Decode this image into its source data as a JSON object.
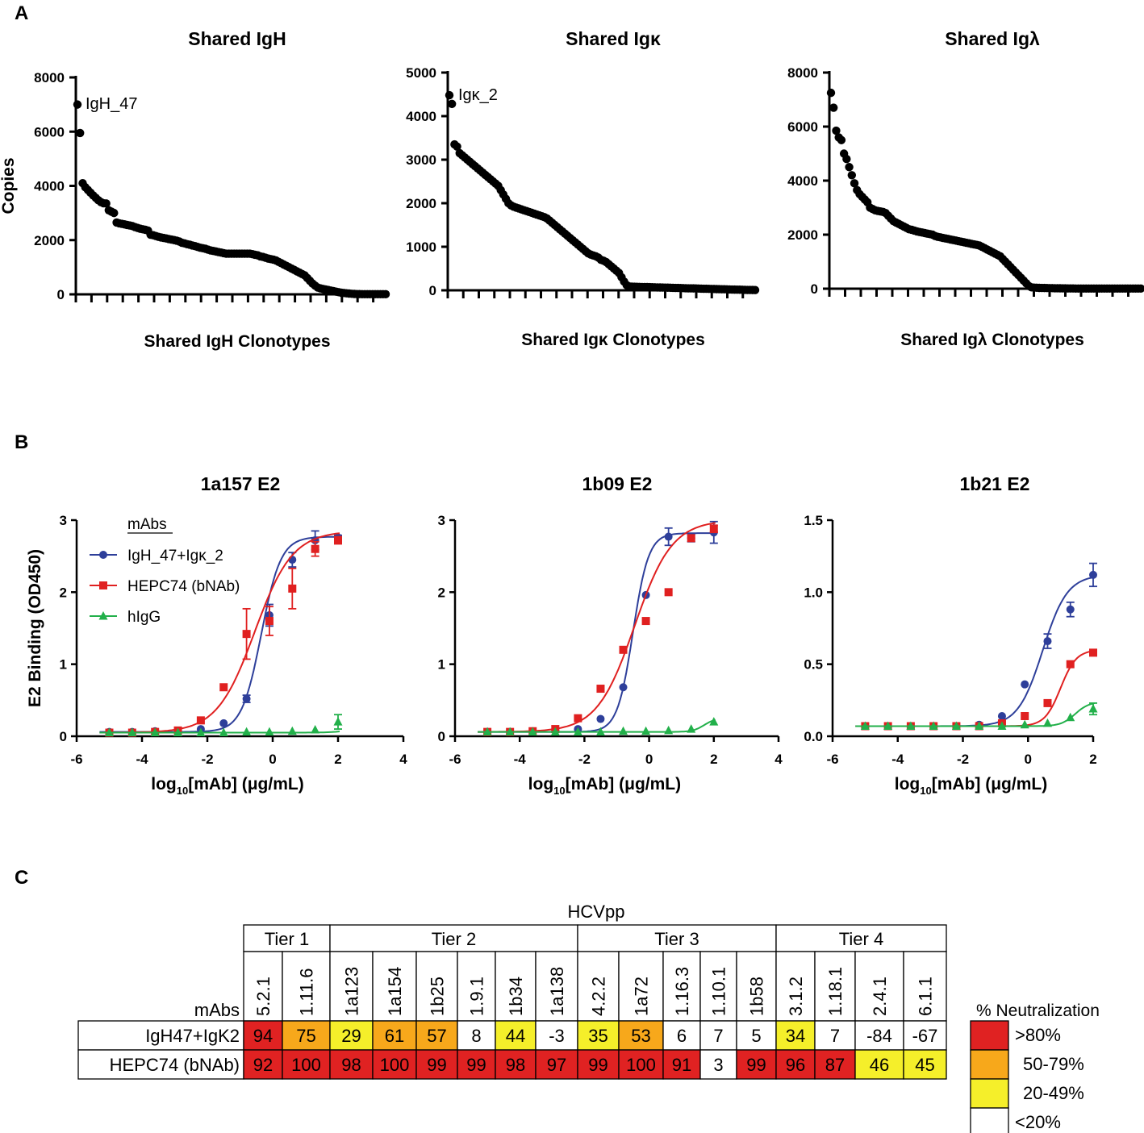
{
  "panels": {
    "a": "A",
    "b": "B",
    "c": "C"
  },
  "chart_data": [
    {
      "type": "scatter",
      "title": "Shared IgH",
      "xlabel": "Shared IgH Clonotypes",
      "ylabel": "Copies",
      "yticks": [
        "0",
        "2000",
        "4000",
        "6000",
        "8000"
      ],
      "ylim": [
        0,
        8000
      ],
      "annotation": "IgH_47",
      "x_tick_count": 20,
      "values": [
        7000,
        5950,
        4100,
        3950,
        3850,
        3750,
        3650,
        3560,
        3470,
        3400,
        3360,
        3350,
        3100,
        3050,
        3000,
        2650,
        2620,
        2600,
        2580,
        2560,
        2540,
        2520,
        2480,
        2450,
        2420,
        2400,
        2380,
        2350,
        2200,
        2180,
        2150,
        2120,
        2100,
        2080,
        2060,
        2040,
        2020,
        2000,
        1980,
        1950,
        1900,
        1880,
        1850,
        1830,
        1800,
        1780,
        1750,
        1720,
        1700,
        1680,
        1650,
        1620,
        1600,
        1580,
        1560,
        1540,
        1520,
        1500,
        1500,
        1500,
        1500,
        1500,
        1500,
        1500,
        1500,
        1500,
        1500,
        1480,
        1460,
        1440,
        1400,
        1380,
        1350,
        1320,
        1300,
        1280,
        1250,
        1200,
        1150,
        1100,
        1050,
        1000,
        950,
        900,
        850,
        800,
        750,
        700,
        600,
        500,
        400,
        320,
        250,
        220,
        200,
        180,
        160,
        140,
        120,
        100,
        80,
        60,
        50,
        40,
        30,
        20,
        15,
        10,
        8,
        5,
        5,
        5,
        5,
        5,
        5,
        5,
        5,
        5,
        5
      ]
    },
    {
      "type": "scatter",
      "title": "Shared Igκ",
      "xlabel": "Shared Igκ Clonotypes",
      "ylabel": "",
      "yticks": [
        "0",
        "1000",
        "2000",
        "3000",
        "4000",
        "5000"
      ],
      "ylim": [
        0,
        5000
      ],
      "annotation": "Igκ_2",
      "x_tick_count": 20,
      "values": [
        4480,
        4280,
        3350,
        3300,
        3150,
        3100,
        3050,
        3000,
        2950,
        2900,
        2850,
        2800,
        2750,
        2700,
        2650,
        2600,
        2550,
        2500,
        2450,
        2400,
        2300,
        2200,
        2100,
        2000,
        1950,
        1920,
        1900,
        1880,
        1860,
        1840,
        1820,
        1800,
        1780,
        1760,
        1740,
        1720,
        1700,
        1680,
        1650,
        1600,
        1550,
        1500,
        1450,
        1400,
        1350,
        1300,
        1250,
        1200,
        1150,
        1100,
        1050,
        1000,
        950,
        900,
        850,
        820,
        800,
        780,
        750,
        700,
        680,
        650,
        600,
        550,
        500,
        450,
        400,
        300,
        200,
        120,
        90,
        85,
        82,
        80,
        78,
        76,
        75,
        74,
        72,
        70,
        68,
        66,
        65,
        64,
        62,
        60,
        58,
        56,
        55,
        54,
        52,
        50,
        48,
        46,
        45,
        44,
        42,
        40,
        38,
        36,
        35,
        34,
        32,
        30,
        28,
        26,
        25,
        24,
        22,
        20,
        18,
        16,
        15,
        14,
        12,
        10,
        9,
        8,
        7,
        6
      ]
    },
    {
      "type": "scatter",
      "title": "Shared Igλ",
      "xlabel": "Shared Igλ Clonotypes",
      "ylabel": "",
      "yticks": [
        "0",
        "2000",
        "4000",
        "6000",
        "8000"
      ],
      "ylim": [
        0,
        8000
      ],
      "annotation": "",
      "x_tick_count": 20,
      "values": [
        7250,
        6700,
        5850,
        5600,
        5500,
        5000,
        4800,
        4500,
        4200,
        3900,
        3650,
        3500,
        3400,
        3300,
        3200,
        3000,
        2950,
        2900,
        2880,
        2860,
        2840,
        2800,
        2700,
        2600,
        2500,
        2450,
        2400,
        2350,
        2300,
        2250,
        2200,
        2180,
        2150,
        2120,
        2100,
        2080,
        2060,
        2040,
        2020,
        2000,
        1950,
        1920,
        1900,
        1880,
        1860,
        1840,
        1820,
        1800,
        1780,
        1760,
        1740,
        1720,
        1700,
        1680,
        1660,
        1640,
        1620,
        1600,
        1550,
        1500,
        1450,
        1400,
        1350,
        1300,
        1250,
        1200,
        1100,
        1000,
        900,
        800,
        700,
        600,
        500,
        400,
        300,
        200,
        100,
        50,
        40,
        35,
        30,
        28,
        26,
        24,
        22,
        20,
        18,
        16,
        15,
        14,
        12,
        10,
        9,
        8,
        7,
        6,
        5,
        5,
        5,
        5,
        5,
        5,
        5,
        5,
        5,
        5,
        5,
        5,
        5,
        5,
        5,
        5,
        5,
        5,
        5,
        5,
        5,
        5,
        5,
        5
      ]
    },
    {
      "type": "line",
      "title": "1a157 E2",
      "ylabel": "E2 Binding (OD450)",
      "xlim": [
        -6,
        4
      ],
      "xticks": [
        "-6",
        "-4",
        "-2",
        "0",
        "2",
        "4"
      ],
      "ylim": [
        0,
        3
      ],
      "yticks": [
        "0",
        "1",
        "2",
        "3"
      ],
      "legend": {
        "title": "mAbs",
        "position": "top-left"
      },
      "series": [
        {
          "name": "IgH_47+Igκ_2",
          "color": "#2e3f9a",
          "marker": "circle",
          "x": [
            -5,
            -4.3,
            -3.6,
            -2.9,
            -2.2,
            -1.5,
            -0.8,
            -0.1,
            0.6,
            1.3,
            2
          ],
          "y": [
            0.06,
            0.06,
            0.07,
            0.07,
            0.1,
            0.18,
            0.52,
            1.68,
            2.45,
            2.72,
            2.76
          ],
          "err": [
            0,
            0,
            0,
            0,
            0,
            0,
            0.05,
            0.15,
            0.1,
            0.13,
            0.03
          ],
          "fit": {
            "bottom": 0.06,
            "top": 2.77,
            "ec50": -0.35,
            "hill": 1.45
          }
        },
        {
          "name": "HEPC74 (bNAb)",
          "color": "#e02020",
          "marker": "square",
          "x": [
            -5,
            -4.3,
            -3.6,
            -2.9,
            -2.2,
            -1.5,
            -0.8,
            -0.1,
            0.6,
            1.3,
            2
          ],
          "y": [
            0.05,
            0.05,
            0.06,
            0.08,
            0.22,
            0.68,
            1.42,
            1.6,
            2.05,
            2.6,
            2.72
          ],
          "err": [
            0,
            0,
            0,
            0,
            0,
            0,
            0.35,
            0.2,
            0.28,
            0.1,
            0.05
          ],
          "fit": {
            "bottom": 0.05,
            "top": 2.85,
            "ec50": -0.55,
            "hill": 0.75
          }
        },
        {
          "name": "hIgG",
          "color": "#22b04a",
          "marker": "triangle",
          "x": [
            -5,
            -4.3,
            -3.6,
            -2.9,
            -2.2,
            -1.5,
            -0.8,
            -0.1,
            0.6,
            1.3,
            2
          ],
          "y": [
            0.05,
            0.05,
            0.05,
            0.05,
            0.05,
            0.05,
            0.06,
            0.06,
            0.07,
            0.09,
            0.2
          ],
          "err": [
            0,
            0,
            0,
            0,
            0,
            0,
            0,
            0,
            0,
            0,
            0.1
          ],
          "fit": {
            "bottom": 0.05,
            "top": 0.8,
            "ec50": 3.3,
            "hill": 1.3
          }
        }
      ]
    },
    {
      "type": "line",
      "title": "1b09 E2",
      "ylabel": "",
      "xlim": [
        -6,
        4
      ],
      "xticks": [
        "-6",
        "-4",
        "-2",
        "0",
        "2",
        "4"
      ],
      "ylim": [
        0,
        3
      ],
      "yticks": [
        "0",
        "1",
        "2",
        "3"
      ],
      "series": [
        {
          "name": "IgH_47+Igκ_2",
          "color": "#2e3f9a",
          "marker": "circle",
          "x": [
            -5,
            -4.3,
            -3.6,
            -2.9,
            -2.2,
            -1.5,
            -0.8,
            -0.1,
            0.6,
            1.3,
            2
          ],
          "y": [
            0.06,
            0.06,
            0.07,
            0.08,
            0.1,
            0.24,
            0.68,
            1.96,
            2.77,
            2.75,
            2.83
          ],
          "err": [
            0,
            0,
            0,
            0,
            0,
            0,
            0,
            0,
            0.12,
            0.05,
            0.15
          ],
          "fit": {
            "bottom": 0.06,
            "top": 2.82,
            "ec50": -0.5,
            "hill": 1.8
          }
        },
        {
          "name": "HEPC74 (bNAb)",
          "color": "#e02020",
          "marker": "square",
          "x": [
            -5,
            -4.3,
            -3.6,
            -2.9,
            -2.2,
            -1.5,
            -0.8,
            -0.1,
            0.6,
            1.3,
            2
          ],
          "y": [
            0.06,
            0.06,
            0.07,
            0.1,
            0.25,
            0.66,
            1.2,
            1.6,
            2.0,
            2.75,
            2.88
          ],
          "err": [
            0,
            0,
            0,
            0,
            0,
            0,
            0,
            0,
            0,
            0,
            0.05
          ],
          "fit": {
            "bottom": 0.06,
            "top": 3.0,
            "ec50": -0.45,
            "hill": 0.75
          }
        },
        {
          "name": "hIgG",
          "color": "#22b04a",
          "marker": "triangle",
          "x": [
            -5,
            -4.3,
            -3.6,
            -2.9,
            -2.2,
            -1.5,
            -0.8,
            -0.1,
            0.6,
            1.3,
            2
          ],
          "y": [
            0.06,
            0.06,
            0.06,
            0.06,
            0.06,
            0.06,
            0.07,
            0.07,
            0.08,
            0.1,
            0.2
          ],
          "err": [
            0,
            0,
            0,
            0,
            0,
            0,
            0,
            0,
            0,
            0,
            0
          ],
          "fit": {
            "bottom": 0.06,
            "top": 0.25,
            "ec50": 1.7,
            "hill": 2.5
          }
        }
      ]
    },
    {
      "type": "line",
      "title": "1b21 E2",
      "ylabel": "",
      "xlim": [
        -6,
        2
      ],
      "xticks": [
        "-6",
        "-4",
        "-2",
        "0",
        "2"
      ],
      "ylim": [
        0,
        1.5
      ],
      "yticks": [
        "0.0",
        "0.5",
        "1.0",
        "1.5"
      ],
      "series": [
        {
          "name": "IgH_47+Igκ_2",
          "color": "#2e3f9a",
          "marker": "circle",
          "x": [
            -5,
            -4.3,
            -3.6,
            -2.9,
            -2.2,
            -1.5,
            -0.8,
            -0.1,
            0.6,
            1.3,
            2
          ],
          "y": [
            0.07,
            0.07,
            0.07,
            0.07,
            0.07,
            0.08,
            0.14,
            0.36,
            0.66,
            0.88,
            1.12
          ],
          "err": [
            0,
            0,
            0,
            0,
            0,
            0,
            0,
            0,
            0.05,
            0.05,
            0.08
          ],
          "fit": {
            "bottom": 0.07,
            "top": 1.12,
            "ec50": 0.45,
            "hill": 1.15
          }
        },
        {
          "name": "HEPC74 (bNAb)",
          "color": "#e02020",
          "marker": "square",
          "x": [
            -5,
            -4.3,
            -3.6,
            -2.9,
            -2.2,
            -1.5,
            -0.8,
            -0.1,
            0.6,
            1.3,
            2
          ],
          "y": [
            0.07,
            0.07,
            0.07,
            0.07,
            0.07,
            0.07,
            0.09,
            0.14,
            0.23,
            0.5,
            0.58
          ],
          "err": [
            0,
            0,
            0,
            0,
            0,
            0,
            0,
            0,
            0,
            0,
            0
          ],
          "fit": {
            "bottom": 0.07,
            "top": 0.6,
            "ec50": 1.0,
            "hill": 1.8
          }
        },
        {
          "name": "hIgG",
          "color": "#22b04a",
          "marker": "triangle",
          "x": [
            -5,
            -4.3,
            -3.6,
            -2.9,
            -2.2,
            -1.5,
            -0.8,
            -0.1,
            0.6,
            1.3,
            2
          ],
          "y": [
            0.07,
            0.07,
            0.07,
            0.07,
            0.07,
            0.07,
            0.07,
            0.08,
            0.09,
            0.13,
            0.19
          ],
          "err": [
            0,
            0,
            0,
            0,
            0,
            0,
            0,
            0,
            0,
            0,
            0.04
          ],
          "fit": {
            "bottom": 0.07,
            "top": 0.24,
            "ec50": 1.45,
            "hill": 2.0
          }
        }
      ]
    },
    {
      "type": "table",
      "title": "HCVpp",
      "row_header_label": "mAbs",
      "tiers": [
        {
          "label": "Tier 1",
          "span": 2
        },
        {
          "label": "Tier 2",
          "span": 6
        },
        {
          "label": "Tier 3",
          "span": 5
        },
        {
          "label": "Tier 4",
          "span": 4
        }
      ],
      "columns": [
        "5.2.1",
        "1.11.6",
        "1a123",
        "1a154",
        "1b25",
        "1.9.1",
        "1b34",
        "1a138",
        "4.2.2",
        "1a72",
        "1.16.3",
        "1.10.1",
        "1b58",
        "3.1.2",
        "1.18.1",
        "2.4.1",
        "6.1.1"
      ],
      "rows": [
        {
          "name": "IgH47+IgK2",
          "values": [
            "94",
            "75",
            "29",
            "61",
            "57",
            "8",
            "44",
            "-3",
            "35",
            "53",
            "6",
            "7",
            "5",
            "34",
            "7",
            "-84",
            "-67"
          ]
        },
        {
          "name": "HEPC74 (bNAb)",
          "values": [
            "92",
            "100",
            "98",
            "100",
            "99",
            "99",
            "98",
            "97",
            "99",
            "100",
            "91",
            "3",
            "99",
            "96",
            "87",
            "46",
            "45"
          ]
        }
      ],
      "legend_title": "% Neutralization",
      "legend": [
        {
          "label": ">80%",
          "color": "#e02222"
        },
        {
          "label": "50-79%",
          "color": "#f7a81b"
        },
        {
          "label": "20-49%",
          "color": "#f5ef2a"
        },
        {
          "label": "<20%",
          "color": "#ffffff"
        }
      ]
    }
  ]
}
